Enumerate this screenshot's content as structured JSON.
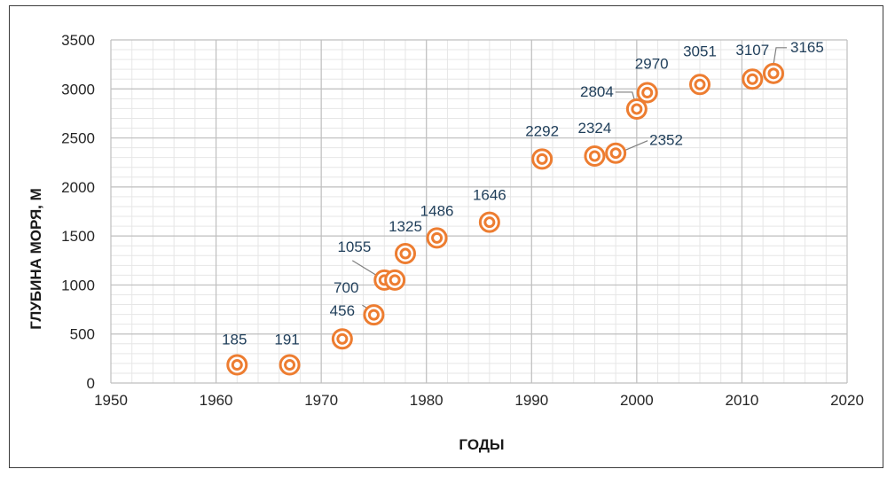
{
  "chart_data": {
    "type": "scatter",
    "title": "",
    "xlabel": "ГОДЫ",
    "ylabel": "ГЛУБИНА МОРЯ, М",
    "xlim": [
      1950,
      2020
    ],
    "ylim": [
      0,
      3500
    ],
    "x_ticks": [
      "1950",
      "1960",
      "1970",
      "1980",
      "1990",
      "2000",
      "2010",
      "2020"
    ],
    "y_ticks": [
      "0",
      "500",
      "1000",
      "1500",
      "2000",
      "2500",
      "3000",
      "3500"
    ],
    "grid": true,
    "legend": "none",
    "marker": "double-ring",
    "marker_color": "#ed7d31",
    "label_color": "#1f3e5a",
    "points": [
      {
        "x": 1962,
        "y": 185,
        "label": "185"
      },
      {
        "x": 1967,
        "y": 185,
        "label": "191"
      },
      {
        "x": 1972,
        "y": 450,
        "label": "456"
      },
      {
        "x": 1975,
        "y": 695,
        "label": "700"
      },
      {
        "x": 1976,
        "y": 1050,
        "label": "1055"
      },
      {
        "x": 1977,
        "y": 1050,
        "label": ""
      },
      {
        "x": 1978,
        "y": 1320,
        "label": "1325"
      },
      {
        "x": 1981,
        "y": 1480,
        "label": "1486"
      },
      {
        "x": 1986,
        "y": 1640,
        "label": "1646"
      },
      {
        "x": 1991,
        "y": 2285,
        "label": "2292"
      },
      {
        "x": 1996,
        "y": 2315,
        "label": "2324"
      },
      {
        "x": 1998,
        "y": 2345,
        "label": "2352"
      },
      {
        "x": 2000,
        "y": 2795,
        "label": "2804"
      },
      {
        "x": 2001,
        "y": 2962,
        "label": "2970"
      },
      {
        "x": 2006,
        "y": 3045,
        "label": "3051"
      },
      {
        "x": 2011,
        "y": 3100,
        "label": "3107"
      },
      {
        "x": 2013,
        "y": 3158,
        "label": "3165"
      }
    ]
  }
}
